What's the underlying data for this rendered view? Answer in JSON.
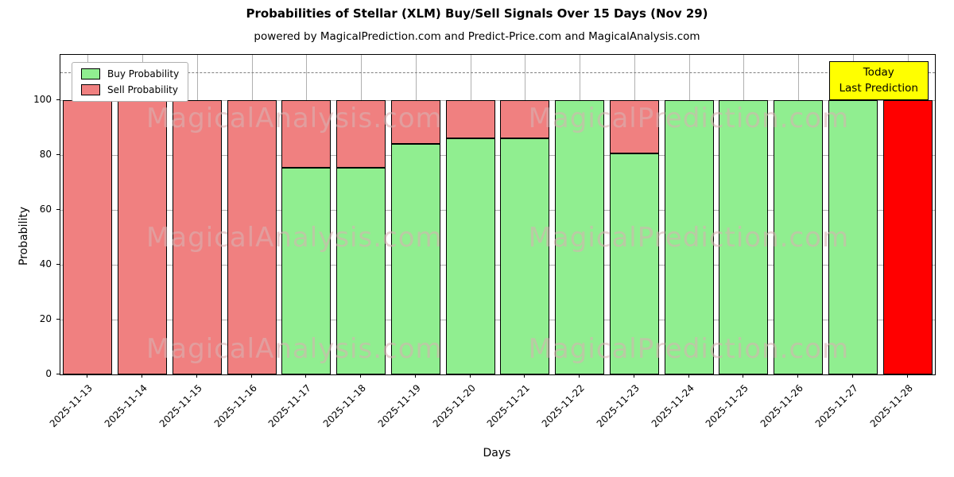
{
  "title": "Probabilities of Stellar (XLM) Buy/Sell Signals Over 15 Days (Nov 29)",
  "subtitle": "powered by MagicalPrediction.com and Predict-Price.com and MagicalAnalysis.com",
  "axes": {
    "xlabel": "Days",
    "ylabel": "Probability",
    "yticks": [
      0,
      20,
      40,
      60,
      80,
      100
    ],
    "dashed_line_y": 110,
    "grid": true
  },
  "legend": {
    "items": [
      {
        "label": "Buy Probability",
        "color": "#90ee90"
      },
      {
        "label": "Sell Probability",
        "color": "#f08080"
      }
    ]
  },
  "annotation": {
    "lines": [
      "Today",
      "Last Prediction"
    ],
    "bg_color": "#ffff00"
  },
  "watermarks": [
    "MagicalAnalysis.com",
    "MagicalPrediction.com"
  ],
  "chart_data": {
    "type": "bar",
    "stacked": true,
    "title": "Probabilities of Stellar (XLM) Buy/Sell Signals Over 15 Days (Nov 29)",
    "xlabel": "Days",
    "ylabel": "Probability",
    "ylim": [
      0,
      116.5
    ],
    "categories": [
      "2025-11-13",
      "2025-11-14",
      "2025-11-15",
      "2025-11-16",
      "2025-11-17",
      "2025-11-18",
      "2025-11-19",
      "2025-11-20",
      "2025-11-21",
      "2025-11-22",
      "2025-11-23",
      "2025-11-24",
      "2025-11-25",
      "2025-11-26",
      "2025-11-27",
      "2025-11-28"
    ],
    "series": [
      {
        "name": "Buy Probability",
        "color": "#90ee90",
        "values": [
          0,
          0,
          0,
          0,
          75.5,
          75.5,
          84,
          86,
          86,
          100,
          80.5,
          100,
          100,
          100,
          100,
          0
        ]
      },
      {
        "name": "Sell Probability",
        "color": "#f08080",
        "values": [
          100,
          100,
          100,
          100,
          24.5,
          24.5,
          16,
          14,
          14,
          0,
          19.5,
          0,
          0,
          0,
          0,
          100
        ]
      }
    ],
    "last_bar_color": "#ff0000",
    "legend_position": "upper left"
  }
}
